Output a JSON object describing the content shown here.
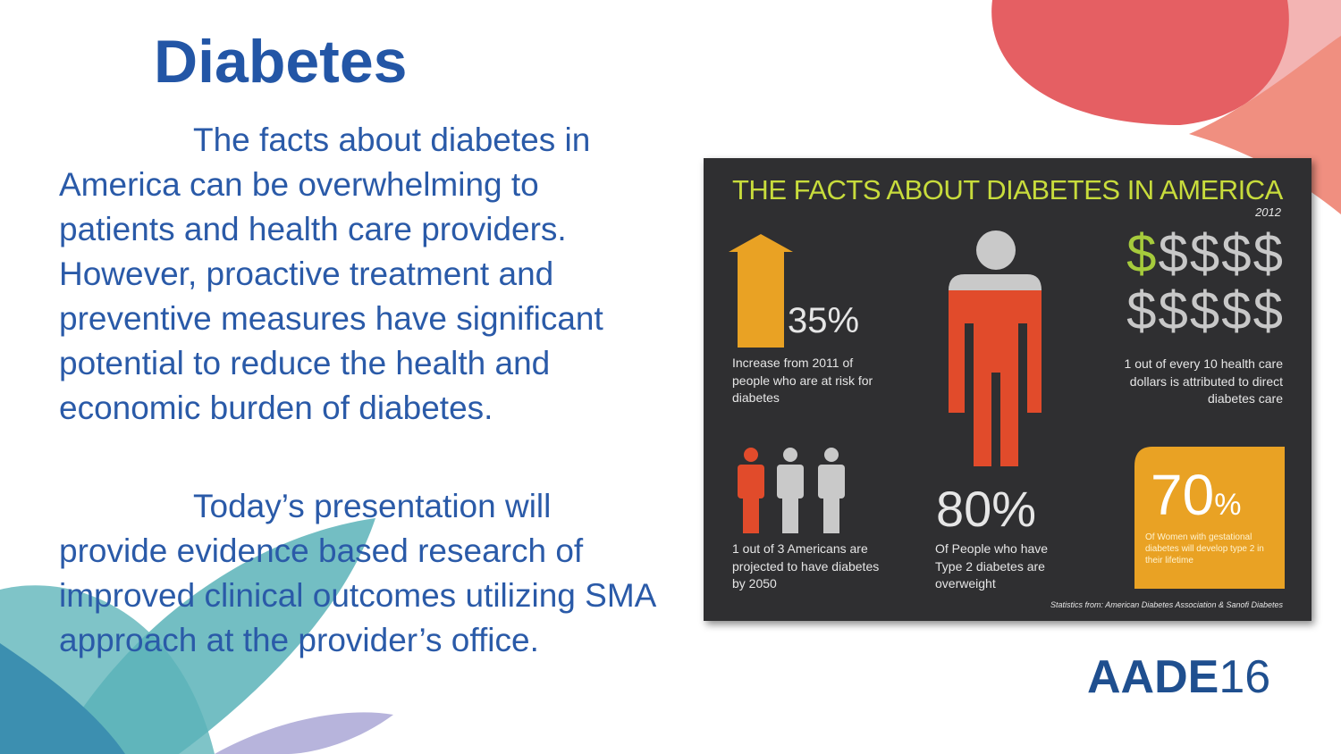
{
  "slide": {
    "title": "Diabetes",
    "paragraphs": [
      "The facts about diabetes in America can be overwhelming to patients and health care providers. However, proactive treatment and preventive measures have significant potential to reduce the health and economic burden of diabetes.",
      "Today’s presentation will provide evidence based research of improved clinical outcomes utilizing SMA approach at the provider’s office."
    ],
    "infographic": {
      "title": "THE FACTS ABOUT DIABETES IN AMERICA",
      "year": "2012",
      "stats": [
        {
          "figure": "35%",
          "caption": "Increase from 2011 of people who are at risk for diabetes"
        },
        {
          "dollars": [
            "$",
            "$$$$",
            "$$$$$"
          ],
          "caption": "1 out of every 10 health care dollars is attributed to direct diabetes care"
        },
        {
          "caption": "1 out of 3 Americans are projected to have diabetes by 2050"
        },
        {
          "figure": "80%",
          "caption": "Of People who have Type 2 diabetes are overweight"
        },
        {
          "figure": "70",
          "unit": "%",
          "caption": "Of Women with gestational diabetes will develop type 2 in their lifetime"
        }
      ],
      "source": "Statistics from: American Diabetes Association & Sanofi Diabetes"
    },
    "logo": {
      "name": "AADE",
      "year": "16"
    }
  }
}
